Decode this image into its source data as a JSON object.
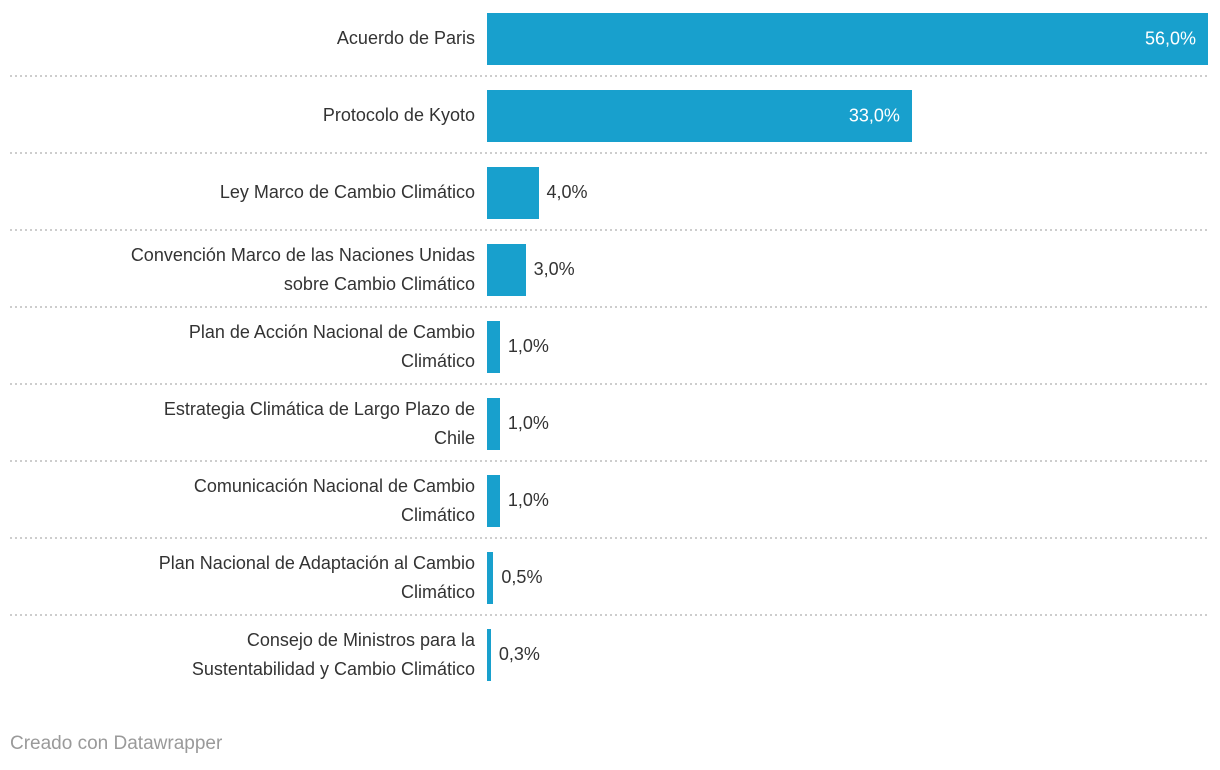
{
  "chart_data": {
    "type": "bar",
    "orientation": "horizontal",
    "title": "",
    "categories": [
      "Acuerdo de Paris",
      "Protocolo de Kyoto",
      "Ley Marco de Cambio Climático",
      "Convención Marco de las Naciones Unidas sobre Cambio Climático",
      "Plan de Acción Nacional de Cambio Climático",
      "Estrategia Climática de Largo Plazo de Chile",
      "Comunicación Nacional de Cambio Climático",
      "Plan Nacional de Adaptación al Cambio Climático",
      "Consejo de Ministros para la Sustentabilidad y Cambio Climático"
    ],
    "values": [
      56.0,
      33.0,
      4.0,
      3.0,
      1.0,
      1.0,
      1.0,
      0.5,
      0.3
    ],
    "value_labels": [
      "56,0%",
      "33,0%",
      "4,0%",
      "3,0%",
      "1,0%",
      "1,0%",
      "1,0%",
      "0,5%",
      "0,3%"
    ],
    "unit": "%",
    "decimal_separator": ",",
    "xlim": [
      0,
      56
    ],
    "legend": "none",
    "grid": "dotted-row-separators",
    "label_lines": [
      [
        "Acuerdo de Paris"
      ],
      [
        "Protocolo de Kyoto"
      ],
      [
        "Ley Marco de Cambio Climático"
      ],
      [
        "Convención Marco de las Naciones Unidas",
        "sobre Cambio Climático"
      ],
      [
        "Plan de Acción Nacional de Cambio",
        "Climático"
      ],
      [
        "Estrategia Climática de Largo Plazo de",
        "Chile"
      ],
      [
        "Comunicación Nacional de Cambio",
        "Climático"
      ],
      [
        "Plan Nacional de Adaptación al Cambio",
        "Climático"
      ],
      [
        "Consejo de Ministros para la",
        "Sustentabilidad y Cambio Climático"
      ]
    ]
  },
  "colors": {
    "bar": "#18a0cd",
    "category_label": "#333333",
    "value_inside": "#ffffff",
    "value_outside": "#333333",
    "separator": "#cdcdcd",
    "footer": "#9a9a9a",
    "background": "#ffffff"
  },
  "footer": {
    "attribution": "Creado con Datawrapper"
  }
}
